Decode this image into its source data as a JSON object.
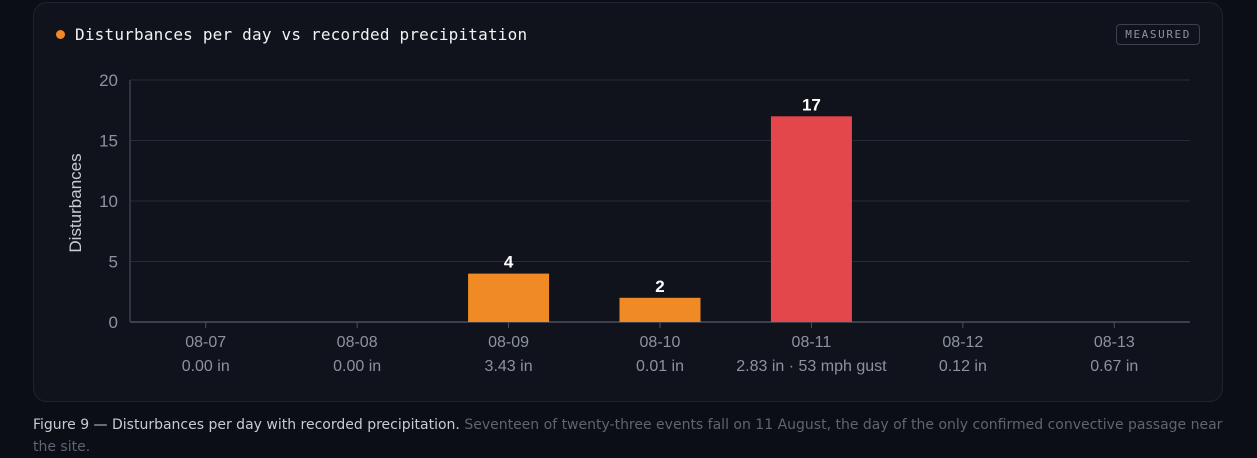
{
  "badge": "MEASURED",
  "caption": {
    "lead": "Figure 9 — Disturbances per day with recorded precipitation.",
    "body": "Seventeen of twenty-three events fall on 11 August, the day of the only confirmed convective passage near the site."
  },
  "colors": {
    "accent": "#f08a24",
    "highlight": "#e3474c",
    "grid": "#262b36",
    "axis_text": "#8c93a0",
    "background": "#10131b"
  },
  "chart_data": {
    "type": "bar",
    "title": "Disturbances per day vs recorded precipitation",
    "ylabel": "Disturbances",
    "xlabel": "",
    "ylim": [
      0,
      20
    ],
    "yticks": [
      0,
      5,
      10,
      15,
      20
    ],
    "grid": true,
    "categories": [
      "08-07",
      "08-08",
      "08-09",
      "08-10",
      "08-11",
      "08-12",
      "08-13"
    ],
    "precipitation": [
      "0.00 in",
      "0.00 in",
      "3.43 in",
      "0.01 in",
      "2.83 in · 53 mph gust",
      "0.12 in",
      "0.67 in"
    ],
    "values": [
      0,
      0,
      4,
      2,
      17,
      0,
      0
    ],
    "highlight_category": "08-11"
  }
}
